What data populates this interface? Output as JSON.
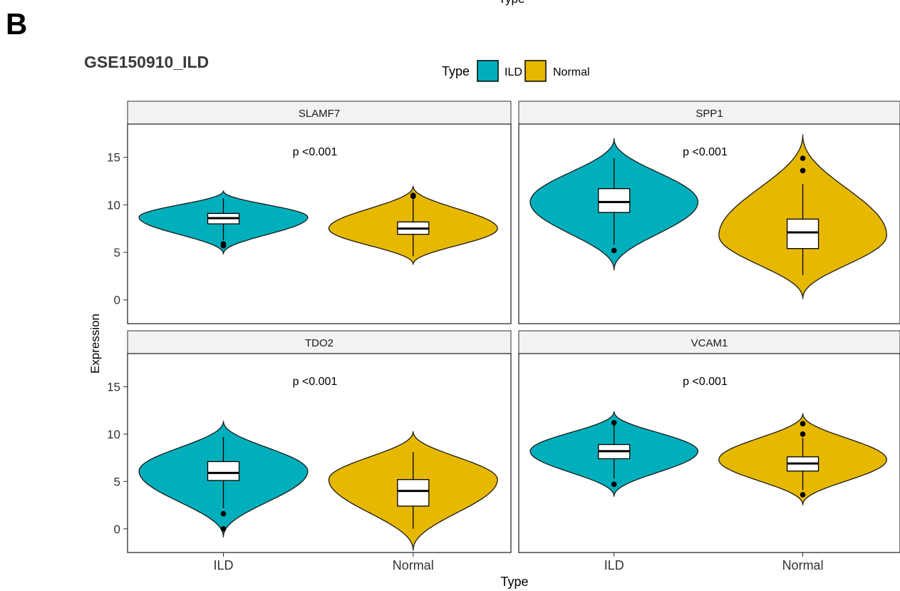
{
  "top_label": "Type",
  "panel_letter": "B",
  "title": "GSE150910_ILD",
  "legend": {
    "title": "Type",
    "items": [
      {
        "label": "ILD",
        "color": "#00AFBB"
      },
      {
        "label": "Normal",
        "color": "#E7B800"
      }
    ]
  },
  "chart_data": {
    "type": "violin",
    "xlabel": "Type",
    "ylabel": "Expression",
    "ylim": [
      -2.5,
      18.5
    ],
    "yticks": [
      0,
      5,
      10,
      15
    ],
    "categories": [
      "ILD",
      "Normal"
    ],
    "grid": false,
    "legend_position": "top",
    "panels": [
      {
        "name": "SLAMF7",
        "pvalue": "p <0.001",
        "groups": [
          {
            "category": "ILD",
            "box": {
              "min": 6.3,
              "q1": 8.0,
              "median": 8.6,
              "q3": 9.1,
              "max": 10.7
            },
            "outliers": [
              5.7,
              5.9
            ],
            "violin": {
              "min": 4.8,
              "max": 11.5,
              "peak": 8.7
            }
          },
          {
            "category": "Normal",
            "box": {
              "min": 4.6,
              "q1": 6.9,
              "median": 7.5,
              "q3": 8.2,
              "max": 10.6
            },
            "outliers": [
              10.9,
              11.0
            ],
            "violin": {
              "min": 3.7,
              "max": 12.0,
              "peak": 7.5
            }
          }
        ]
      },
      {
        "name": "SPP1",
        "pvalue": "p <0.001",
        "groups": [
          {
            "category": "ILD",
            "box": {
              "min": 5.8,
              "q1": 9.2,
              "median": 10.3,
              "q3": 11.7,
              "max": 14.9
            },
            "outliers": [
              5.2
            ],
            "violin": {
              "min": 3.1,
              "max": 17.0,
              "peak": 10.3
            }
          },
          {
            "category": "Normal",
            "box": {
              "min": 2.6,
              "q1": 5.4,
              "median": 7.1,
              "q3": 8.5,
              "max": 12.2
            },
            "outliers": [
              13.6,
              14.9
            ],
            "violin": {
              "min": 0.1,
              "max": 17.4,
              "peak": 6.8
            }
          }
        ]
      },
      {
        "name": "TDO2",
        "pvalue": "p <0.001",
        "groups": [
          {
            "category": "ILD",
            "box": {
              "min": 2.2,
              "q1": 5.1,
              "median": 5.9,
              "q3": 7.1,
              "max": 9.7
            },
            "outliers": [
              1.6,
              0.0
            ],
            "violin": {
              "min": -0.9,
              "max": 11.4,
              "peak": 6.1
            }
          },
          {
            "category": "Normal",
            "box": {
              "min": 0.0,
              "q1": 2.4,
              "median": 4.0,
              "q3": 5.2,
              "max": 8.1
            },
            "outliers": [],
            "violin": {
              "min": -2.3,
              "max": 10.3,
              "peak": 5.2
            }
          }
        ]
      },
      {
        "name": "VCAM1",
        "pvalue": "p <0.001",
        "groups": [
          {
            "category": "ILD",
            "box": {
              "min": 5.3,
              "q1": 7.4,
              "median": 8.2,
              "q3": 8.9,
              "max": 11.0
            },
            "outliers": [
              4.7,
              11.2
            ],
            "violin": {
              "min": 3.4,
              "max": 12.4,
              "peak": 8.2
            }
          },
          {
            "category": "Normal",
            "box": {
              "min": 4.1,
              "q1": 6.1,
              "median": 6.9,
              "q3": 7.6,
              "max": 9.6
            },
            "outliers": [
              3.6,
              10.0,
              11.1
            ],
            "violin": {
              "min": 2.5,
              "max": 12.2,
              "peak": 7.3
            }
          }
        ]
      }
    ]
  }
}
